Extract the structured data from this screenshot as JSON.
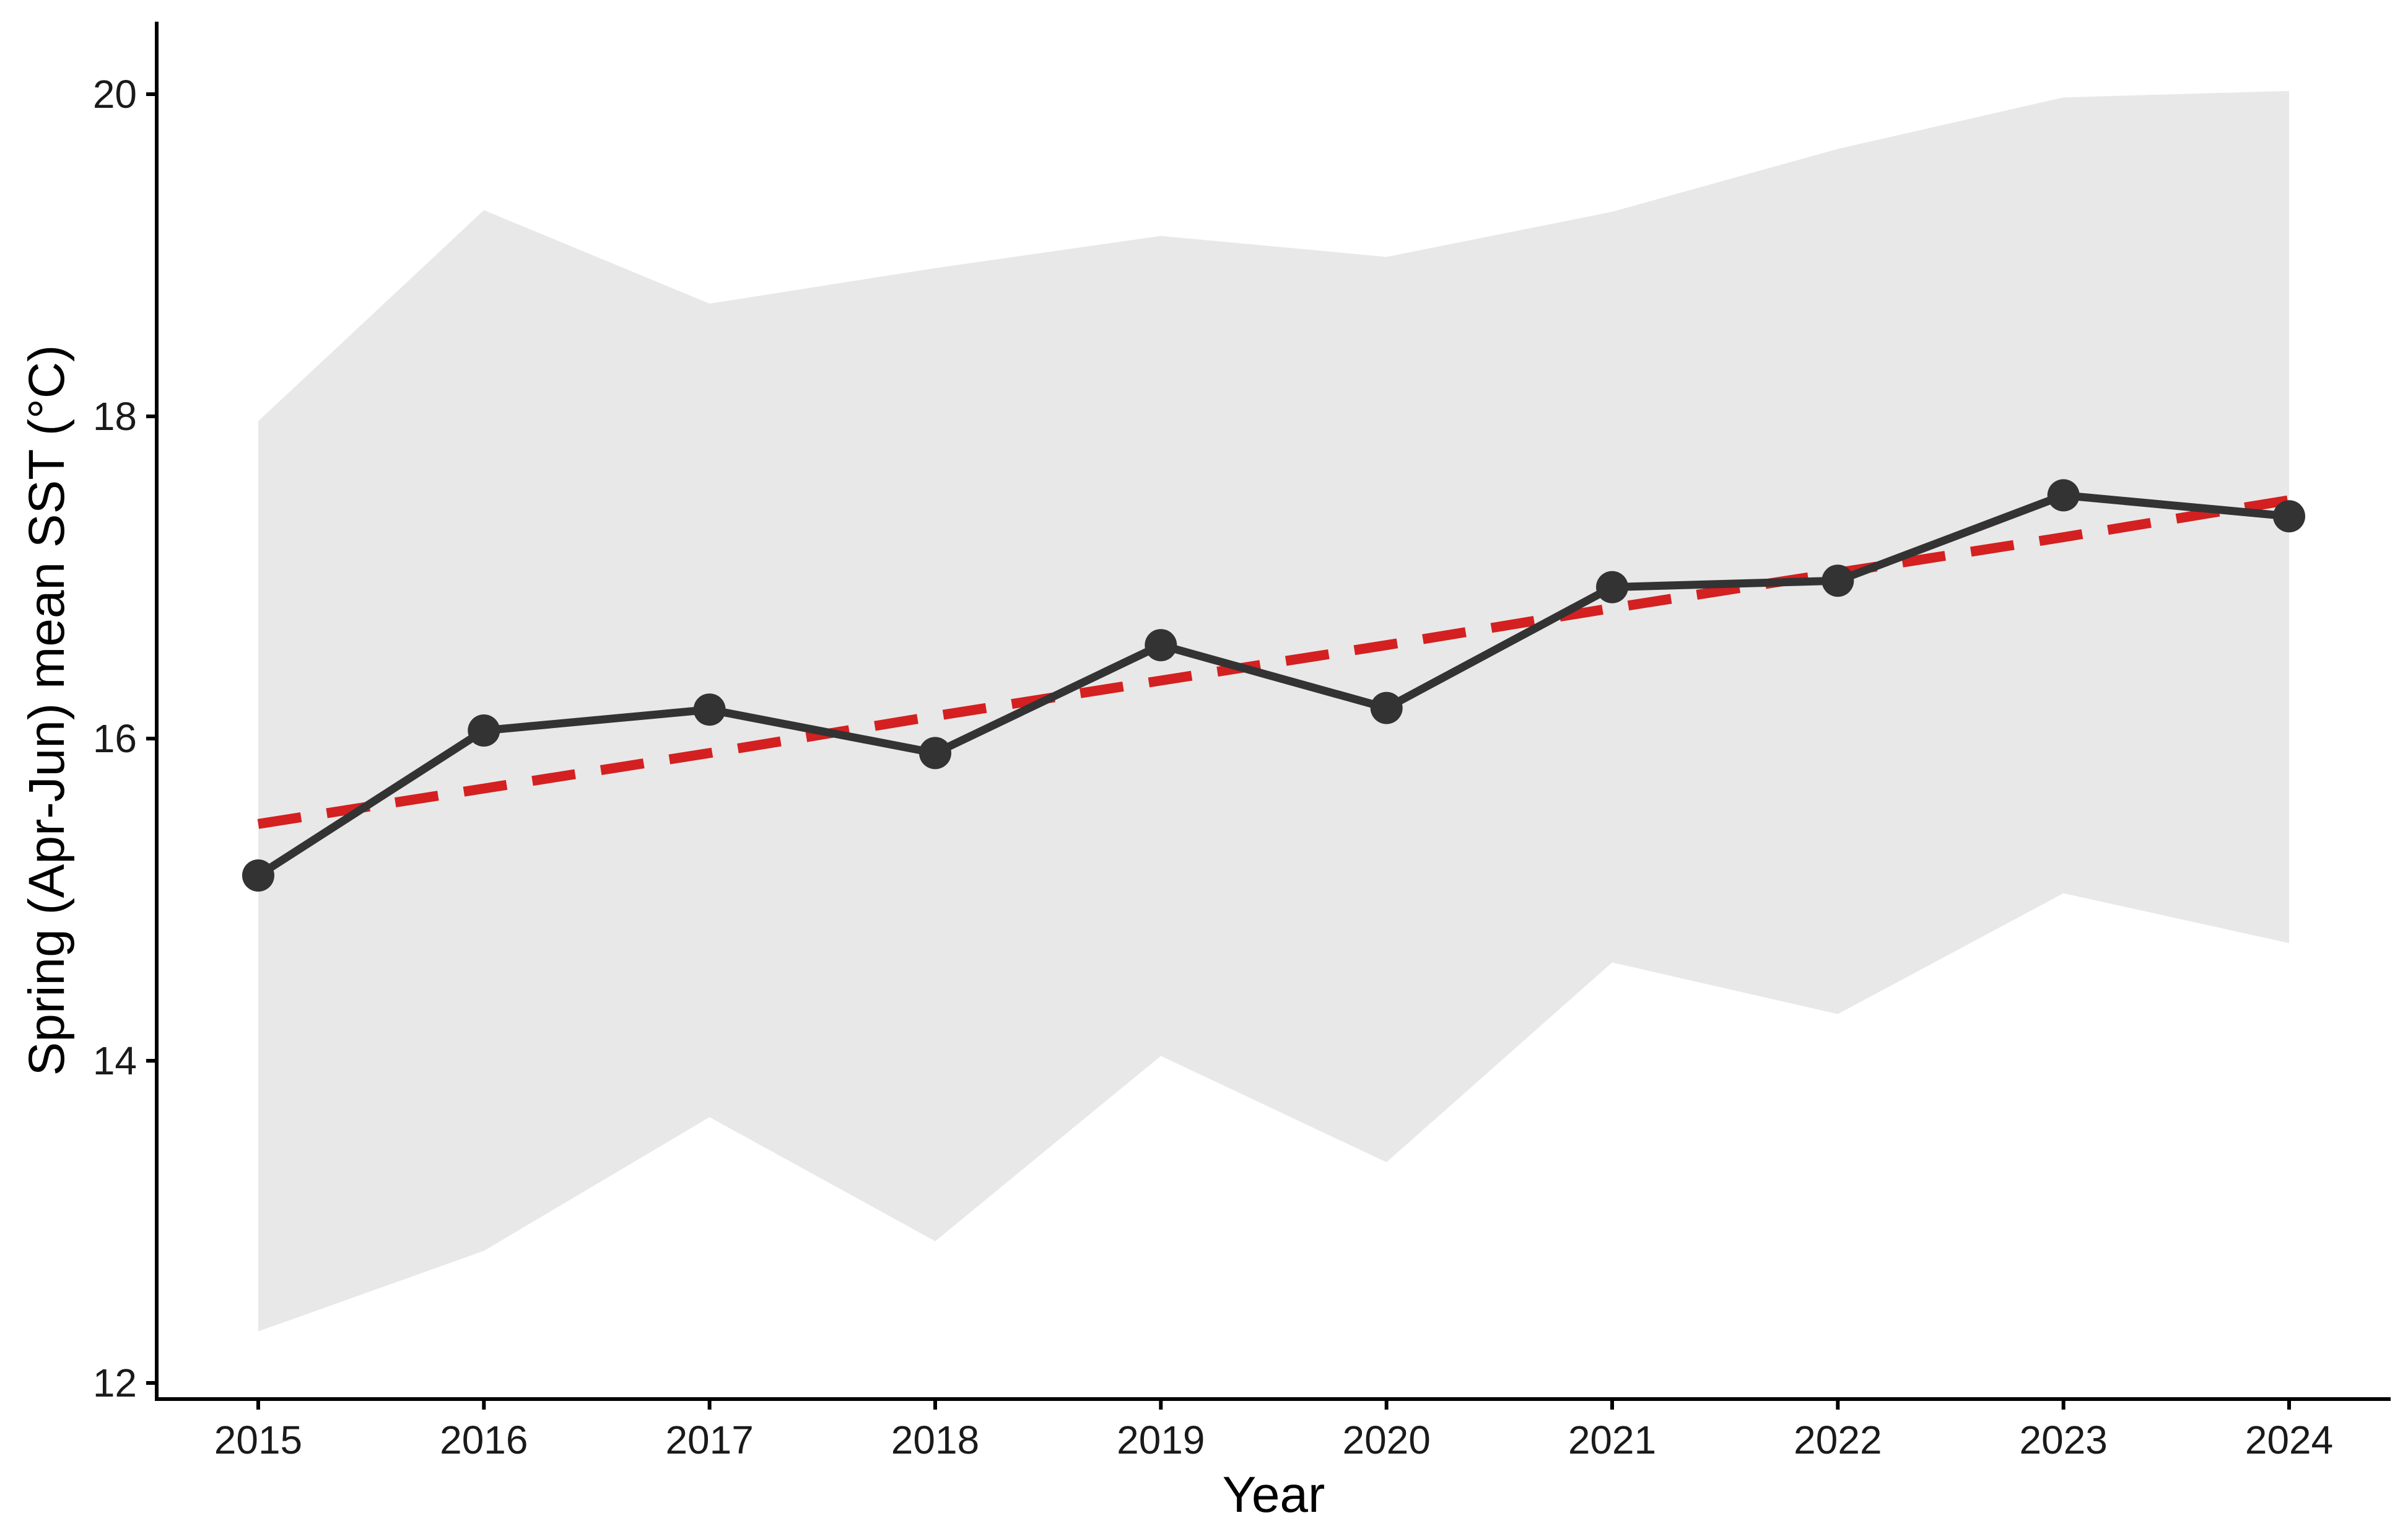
{
  "chart_data": {
    "type": "line",
    "title": "",
    "xlabel": "Year",
    "ylabel": "Spring (Apr-Jun) mean SST (°C)",
    "x": [
      2015,
      2016,
      2017,
      2018,
      2019,
      2020,
      2021,
      2022,
      2023,
      2024
    ],
    "xlim": [
      2014.55,
      2024.45
    ],
    "ylim": [
      11.9,
      20.45
    ],
    "yticks": [
      12,
      14,
      16,
      18,
      20
    ],
    "grid": false,
    "legend": "none",
    "series": [
      {
        "kind": "ribbon",
        "lower": [
          12.32,
          12.82,
          13.65,
          12.88,
          14.03,
          13.37,
          14.61,
          14.29,
          15.04,
          14.73
        ],
        "upper": [
          17.97,
          19.28,
          18.7,
          18.92,
          19.12,
          18.99,
          19.27,
          19.66,
          19.98,
          20.02
        ],
        "color": "#e8e8e8"
      },
      {
        "kind": "line-points",
        "values": [
          15.15,
          16.05,
          16.18,
          15.91,
          16.58,
          16.19,
          16.94,
          16.98,
          17.51,
          17.38
        ],
        "color": "#333333"
      },
      {
        "kind": "trend",
        "style": "dashed",
        "values": [
          15.47,
          15.69,
          15.91,
          16.14,
          16.36,
          16.58,
          16.81,
          17.03,
          17.25,
          17.48
        ],
        "color": "#d42020"
      }
    ]
  }
}
